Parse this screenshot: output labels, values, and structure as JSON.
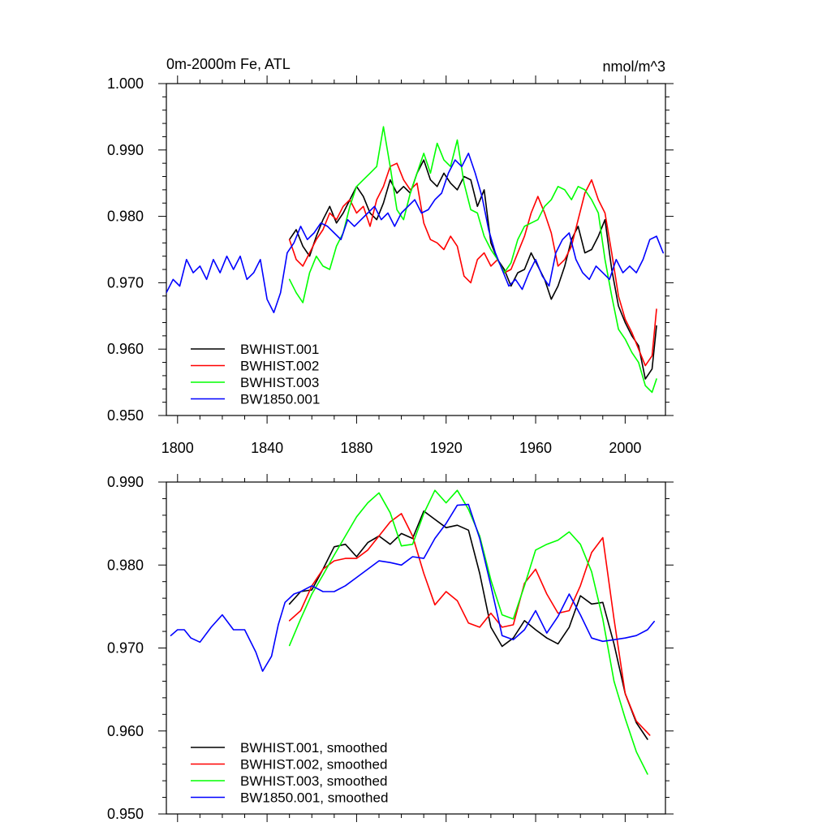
{
  "chart_data": [
    {
      "type": "line",
      "title_left": "0m-2000m Fe, ATL",
      "title_right": "nmol/m^3",
      "xlabel": "",
      "ylabel": "",
      "xlim": [
        1795,
        2018
      ],
      "ylim": [
        0.95,
        1.0
      ],
      "xticks": [
        1800,
        1840,
        1880,
        1920,
        1960,
        2000
      ],
      "yticks": [
        0.95,
        0.96,
        0.97,
        0.98,
        0.99,
        1.0
      ],
      "ytick_labels": [
        "0.950",
        "0.960",
        "0.970",
        "0.980",
        "0.990",
        "1.000"
      ],
      "show_xtick_labels": true,
      "legend_position": "bottom-left",
      "series": [
        {
          "name": "BWHIST.001",
          "color": "#000000",
          "x": [
            1850,
            1853,
            1856,
            1859,
            1862,
            1865,
            1868,
            1871,
            1874,
            1877,
            1880,
            1883,
            1886,
            1889,
            1892,
            1895,
            1898,
            1901,
            1904,
            1907,
            1910,
            1913,
            1916,
            1919,
            1922,
            1925,
            1928,
            1931,
            1934,
            1937,
            1940,
            1943,
            1946,
            1949,
            1952,
            1955,
            1958,
            1961,
            1964,
            1967,
            1970,
            1973,
            1976,
            1979,
            1982,
            1985,
            1988,
            1991,
            1994,
            1997,
            2000,
            2003,
            2006,
            2009,
            2012,
            2014
          ],
          "values": [
            0.9765,
            0.978,
            0.9755,
            0.974,
            0.977,
            0.9795,
            0.9815,
            0.979,
            0.9805,
            0.9825,
            0.9845,
            0.983,
            0.9805,
            0.9795,
            0.982,
            0.9855,
            0.9835,
            0.9845,
            0.9835,
            0.9865,
            0.9885,
            0.9855,
            0.9845,
            0.9865,
            0.985,
            0.984,
            0.986,
            0.9855,
            0.9815,
            0.984,
            0.976,
            0.9735,
            0.972,
            0.9695,
            0.9715,
            0.972,
            0.9745,
            0.9725,
            0.9705,
            0.9675,
            0.9695,
            0.9725,
            0.9765,
            0.9785,
            0.9745,
            0.975,
            0.977,
            0.9795,
            0.972,
            0.9665,
            0.964,
            0.962,
            0.9605,
            0.9555,
            0.957,
            0.9635
          ]
        },
        {
          "name": "BWHIST.002",
          "color": "#ff0000",
          "x": [
            1850,
            1853,
            1856,
            1859,
            1862,
            1865,
            1868,
            1871,
            1874,
            1877,
            1880,
            1883,
            1886,
            1889,
            1892,
            1895,
            1898,
            1901,
            1904,
            1907,
            1910,
            1913,
            1916,
            1919,
            1922,
            1925,
            1928,
            1931,
            1934,
            1937,
            1940,
            1943,
            1946,
            1949,
            1952,
            1955,
            1958,
            1961,
            1964,
            1967,
            1970,
            1973,
            1976,
            1979,
            1982,
            1985,
            1988,
            1991,
            1994,
            1997,
            2000,
            2003,
            2006,
            2009,
            2012,
            2014
          ],
          "values": [
            0.9765,
            0.9735,
            0.9725,
            0.9745,
            0.9765,
            0.978,
            0.9805,
            0.9795,
            0.9815,
            0.9825,
            0.9805,
            0.9815,
            0.9785,
            0.9825,
            0.9845,
            0.9875,
            0.988,
            0.9855,
            0.984,
            0.985,
            0.979,
            0.9765,
            0.976,
            0.975,
            0.977,
            0.9755,
            0.971,
            0.97,
            0.9735,
            0.9745,
            0.9725,
            0.9735,
            0.9715,
            0.972,
            0.9745,
            0.977,
            0.9805,
            0.983,
            0.9805,
            0.9775,
            0.9725,
            0.9735,
            0.9755,
            0.9795,
            0.9835,
            0.9855,
            0.9825,
            0.9805,
            0.9745,
            0.968,
            0.9645,
            0.9625,
            0.96,
            0.9575,
            0.959,
            0.966
          ]
        },
        {
          "name": "BWHIST.003",
          "color": "#00ff00",
          "x": [
            1850,
            1853,
            1856,
            1859,
            1862,
            1865,
            1868,
            1871,
            1874,
            1877,
            1880,
            1883,
            1886,
            1889,
            1892,
            1895,
            1898,
            1901,
            1904,
            1907,
            1910,
            1913,
            1916,
            1919,
            1922,
            1925,
            1928,
            1931,
            1934,
            1937,
            1940,
            1943,
            1946,
            1949,
            1952,
            1955,
            1958,
            1961,
            1964,
            1967,
            1970,
            1973,
            1976,
            1979,
            1982,
            1985,
            1988,
            1991,
            1994,
            1997,
            2000,
            2003,
            2006,
            2009,
            2012,
            2014
          ],
          "values": [
            0.9705,
            0.9685,
            0.967,
            0.9715,
            0.974,
            0.9725,
            0.972,
            0.9755,
            0.9775,
            0.9815,
            0.9845,
            0.9855,
            0.9865,
            0.9875,
            0.9935,
            0.9875,
            0.981,
            0.9795,
            0.9835,
            0.9865,
            0.9895,
            0.9865,
            0.991,
            0.9885,
            0.9875,
            0.9915,
            0.985,
            0.981,
            0.9805,
            0.977,
            0.975,
            0.9735,
            0.9715,
            0.973,
            0.9765,
            0.9785,
            0.979,
            0.9795,
            0.9815,
            0.9825,
            0.9845,
            0.984,
            0.9825,
            0.9845,
            0.984,
            0.9825,
            0.9805,
            0.9735,
            0.968,
            0.963,
            0.9615,
            0.9595,
            0.958,
            0.9545,
            0.9535,
            0.9555
          ]
        },
        {
          "name": "BW1850.001",
          "color": "#0000ff",
          "x": [
            1795,
            1798,
            1801,
            1804,
            1807,
            1810,
            1813,
            1816,
            1819,
            1822,
            1825,
            1828,
            1831,
            1834,
            1837,
            1840,
            1843,
            1846,
            1849,
            1852,
            1855,
            1858,
            1861,
            1864,
            1867,
            1870,
            1873,
            1876,
            1879,
            1882,
            1885,
            1888,
            1891,
            1894,
            1897,
            1900,
            1903,
            1906,
            1909,
            1912,
            1915,
            1918,
            1921,
            1924,
            1927,
            1930,
            1933,
            1936,
            1939,
            1942,
            1945,
            1948,
            1951,
            1954,
            1957,
            1960,
            1963,
            1966,
            1969,
            1972,
            1975,
            1978,
            1981,
            1984,
            1987,
            1990,
            1993,
            1996,
            1999,
            2002,
            2005,
            2008,
            2011,
            2014,
            2017
          ],
          "values": [
            0.9685,
            0.9705,
            0.9695,
            0.9735,
            0.9715,
            0.9725,
            0.9705,
            0.9735,
            0.9715,
            0.974,
            0.972,
            0.974,
            0.9705,
            0.9715,
            0.9735,
            0.9675,
            0.9655,
            0.9685,
            0.9745,
            0.976,
            0.9785,
            0.9765,
            0.9775,
            0.979,
            0.9785,
            0.9775,
            0.9765,
            0.9795,
            0.9785,
            0.9795,
            0.9805,
            0.9815,
            0.9795,
            0.9805,
            0.9785,
            0.9805,
            0.9815,
            0.9825,
            0.9805,
            0.981,
            0.9825,
            0.9835,
            0.9865,
            0.9885,
            0.9875,
            0.9895,
            0.9865,
            0.983,
            0.978,
            0.9745,
            0.972,
            0.9695,
            0.9705,
            0.969,
            0.9715,
            0.9735,
            0.971,
            0.9695,
            0.9745,
            0.9765,
            0.9775,
            0.9735,
            0.9715,
            0.9705,
            0.9725,
            0.9715,
            0.9705,
            0.9735,
            0.9715,
            0.9725,
            0.9715,
            0.9735,
            0.9765,
            0.977,
            0.9745
          ]
        }
      ]
    },
    {
      "type": "line",
      "xlim": [
        1795,
        2018
      ],
      "ylim": [
        0.95,
        0.99
      ],
      "xticks": [
        1800,
        1840,
        1880,
        1920,
        1960,
        2000
      ],
      "yticks": [
        0.95,
        0.96,
        0.97,
        0.98,
        0.99
      ],
      "ytick_labels": [
        "0.950",
        "0.960",
        "0.970",
        "0.980",
        "0.990"
      ],
      "show_xtick_labels": false,
      "legend_position": "bottom-left",
      "series": [
        {
          "name": "BWHIST.001, smoothed",
          "color": "#000000",
          "x": [
            1850,
            1855,
            1860,
            1865,
            1870,
            1875,
            1880,
            1885,
            1890,
            1895,
            1900,
            1905,
            1910,
            1915,
            1920,
            1925,
            1930,
            1935,
            1940,
            1945,
            1950,
            1955,
            1960,
            1965,
            1970,
            1975,
            1980,
            1985,
            1990,
            1995,
            2000,
            2005,
            2010
          ],
          "values": [
            0.9753,
            0.9768,
            0.977,
            0.9795,
            0.9822,
            0.9825,
            0.981,
            0.9827,
            0.9835,
            0.9825,
            0.9838,
            0.9832,
            0.9865,
            0.9855,
            0.9845,
            0.9848,
            0.9842,
            0.979,
            0.9725,
            0.9702,
            0.9712,
            0.9733,
            0.9722,
            0.9712,
            0.9705,
            0.9725,
            0.9763,
            0.9753,
            0.9755,
            0.9705,
            0.9645,
            0.961,
            0.959
          ]
        },
        {
          "name": "BWHIST.002, smoothed",
          "color": "#ff0000",
          "x": [
            1850,
            1855,
            1860,
            1865,
            1870,
            1875,
            1880,
            1885,
            1890,
            1895,
            1900,
            1905,
            1910,
            1915,
            1920,
            1925,
            1930,
            1935,
            1940,
            1945,
            1950,
            1955,
            1960,
            1965,
            1970,
            1975,
            1980,
            1985,
            1990,
            1995,
            2000,
            2005,
            2011
          ],
          "values": [
            0.9733,
            0.9745,
            0.9775,
            0.9795,
            0.9805,
            0.9808,
            0.9808,
            0.9818,
            0.9835,
            0.9852,
            0.9862,
            0.9835,
            0.979,
            0.9752,
            0.9768,
            0.9757,
            0.973,
            0.9725,
            0.9742,
            0.9725,
            0.9728,
            0.9778,
            0.9795,
            0.9765,
            0.9742,
            0.9745,
            0.9775,
            0.9815,
            0.9833,
            0.9735,
            0.9645,
            0.9612,
            0.9595
          ]
        },
        {
          "name": "BWHIST.003, smoothed",
          "color": "#00ff00",
          "x": [
            1850,
            1855,
            1860,
            1865,
            1870,
            1875,
            1880,
            1885,
            1890,
            1895,
            1900,
            1905,
            1910,
            1915,
            1920,
            1925,
            1930,
            1935,
            1940,
            1945,
            1950,
            1955,
            1960,
            1965,
            1970,
            1975,
            1980,
            1985,
            1990,
            1995,
            2000,
            2005,
            2010
          ],
          "values": [
            0.9703,
            0.9735,
            0.9765,
            0.9788,
            0.9812,
            0.9835,
            0.9858,
            0.9875,
            0.9887,
            0.9863,
            0.9823,
            0.9825,
            0.9862,
            0.989,
            0.9875,
            0.989,
            0.9867,
            0.9835,
            0.9782,
            0.974,
            0.9735,
            0.9775,
            0.9818,
            0.9825,
            0.983,
            0.984,
            0.9825,
            0.9792,
            0.9735,
            0.966,
            0.9615,
            0.9575,
            0.9548
          ]
        },
        {
          "name": "BW1850.001, smoothed",
          "color": "#0000ff",
          "x": [
            1797,
            1800,
            1803,
            1806,
            1810,
            1815,
            1820,
            1825,
            1830,
            1835,
            1838,
            1842,
            1845,
            1848,
            1852,
            1855,
            1860,
            1865,
            1870,
            1875,
            1880,
            1885,
            1890,
            1895,
            1900,
            1905,
            1910,
            1915,
            1920,
            1925,
            1930,
            1935,
            1940,
            1945,
            1950,
            1955,
            1960,
            1965,
            1970,
            1975,
            1980,
            1985,
            1990,
            1995,
            2000,
            2005,
            2010,
            2013
          ],
          "values": [
            0.9715,
            0.9722,
            0.9722,
            0.9712,
            0.9707,
            0.9725,
            0.974,
            0.9722,
            0.9722,
            0.9695,
            0.9672,
            0.969,
            0.9728,
            0.9755,
            0.9765,
            0.9768,
            0.9775,
            0.9768,
            0.9768,
            0.9775,
            0.9785,
            0.9795,
            0.9805,
            0.9803,
            0.98,
            0.981,
            0.9808,
            0.9832,
            0.985,
            0.9872,
            0.9873,
            0.9832,
            0.9775,
            0.9715,
            0.971,
            0.9722,
            0.9745,
            0.9718,
            0.9738,
            0.9765,
            0.974,
            0.9712,
            0.9708,
            0.971,
            0.9712,
            0.9715,
            0.9722,
            0.9732
          ]
        }
      ]
    }
  ]
}
